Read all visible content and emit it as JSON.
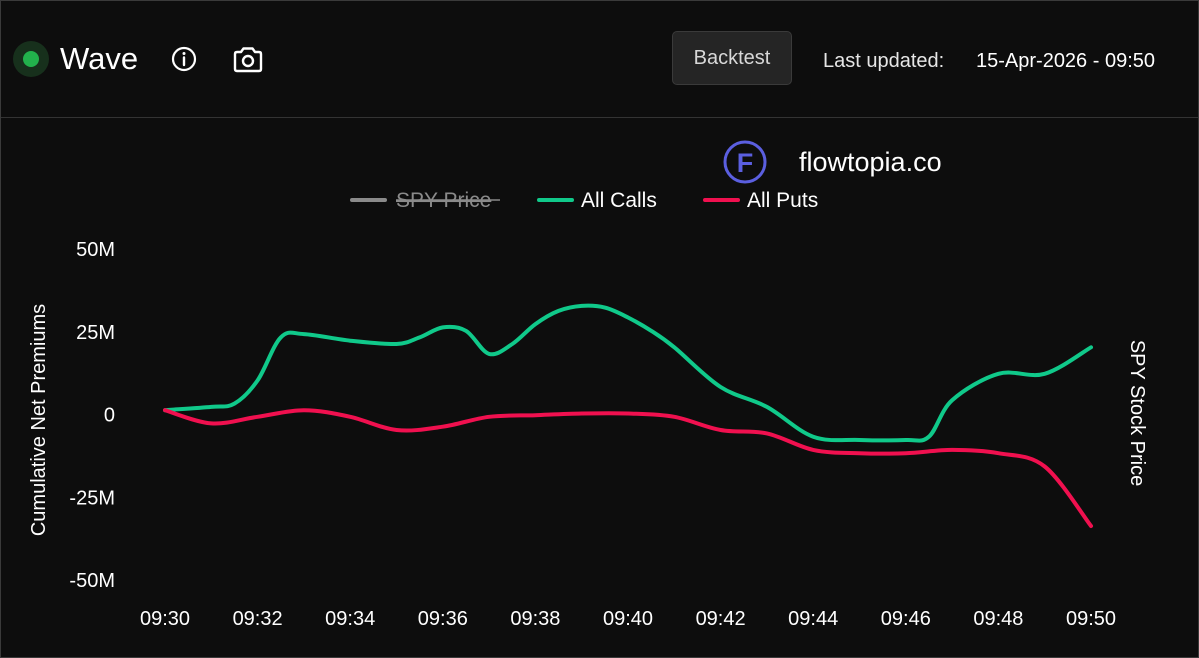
{
  "header": {
    "title": "Wave",
    "backtest_label": "Backtest",
    "last_updated_label": "Last updated:",
    "last_updated_value": "15-Apr-2026 - 09:50",
    "status_color": "#22b14c"
  },
  "watermark": {
    "text": "flowtopia.co",
    "logo_letter": "F",
    "color": "#5b5fe0"
  },
  "chart_data": {
    "type": "line",
    "title": "",
    "ylabel": "Cumulative Net Premiums",
    "ylabel_right": "SPY Stock Price",
    "xlabel": "",
    "ylim": [
      -50,
      50
    ],
    "y_unit": "M",
    "yticks": [
      50,
      25,
      0,
      -25,
      -50
    ],
    "ytick_labels": [
      "50M",
      "25M",
      "0",
      "-25M",
      "-50M"
    ],
    "xlim": [
      0,
      20
    ],
    "xticks": [
      0,
      2,
      4,
      6,
      8,
      10,
      12,
      14,
      16,
      18,
      20
    ],
    "xtick_labels": [
      "09:30",
      "09:32",
      "09:34",
      "09:36",
      "09:38",
      "09:40",
      "09:42",
      "09:44",
      "09:46",
      "09:48",
      "09:50"
    ],
    "grid": false,
    "legend_position": "top-center",
    "series": [
      {
        "name": "SPY Price",
        "color": "#8a8a8a",
        "hidden": true,
        "x": [],
        "values": []
      },
      {
        "name": "All Calls",
        "color": "#10c98a",
        "hidden": false,
        "x": [
          0,
          1,
          1.5,
          2,
          2.5,
          3,
          4,
          5,
          5.5,
          6,
          6.5,
          7,
          7.5,
          8,
          8.5,
          9,
          9.5,
          10,
          10.5,
          11,
          12,
          13,
          14,
          15,
          16,
          16.5,
          17,
          18,
          19,
          20
        ],
        "values": [
          1,
          2,
          3,
          10,
          23,
          24,
          22,
          21,
          23,
          26,
          25,
          18,
          21,
          27,
          31,
          32.5,
          32,
          29,
          25,
          20,
          8,
          2,
          -7,
          -8,
          -8,
          -7,
          4,
          12,
          12,
          20
        ]
      },
      {
        "name": "All Puts",
        "color": "#f0104f",
        "hidden": false,
        "x": [
          0,
          1,
          2,
          3,
          4,
          5,
          6,
          7,
          8,
          9,
          10,
          11,
          12,
          13,
          14,
          15,
          16,
          17,
          18,
          19,
          20
        ],
        "values": [
          1,
          -3,
          -1,
          1,
          -1,
          -5,
          -4,
          -1,
          -0.5,
          0,
          0,
          -1,
          -5,
          -6,
          -11,
          -12,
          -12,
          -11,
          -12,
          -16,
          -34
        ]
      }
    ]
  }
}
